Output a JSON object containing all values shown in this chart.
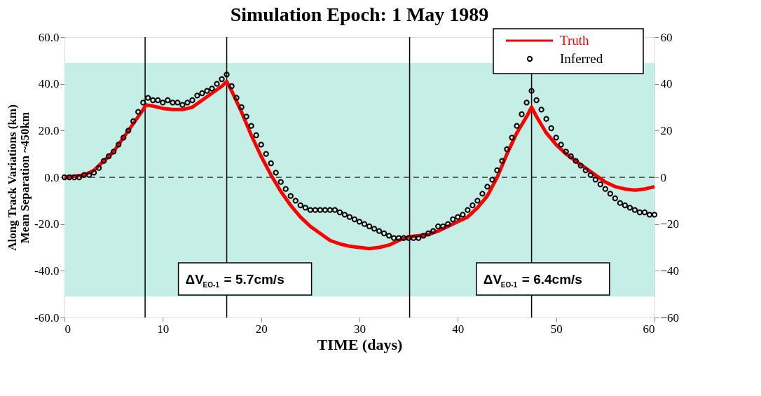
{
  "chart_data": {
    "type": "line",
    "title": "Simulation Epoch: 1 May 1989",
    "xlabel": "TIME (days)",
    "ylabel": "Along Track Variations (km)\nMean Separation ~450km",
    "xlim": [
      0,
      60
    ],
    "xticks": [
      0,
      10,
      20,
      30,
      40,
      50,
      60
    ],
    "ylim": [
      -60,
      60
    ],
    "yticks": [
      {
        "value": -60,
        "label": "-60.0"
      },
      {
        "value": -40,
        "label": "-40.0"
      },
      {
        "value": -20,
        "label": "-20.0"
      },
      {
        "value": 0,
        "label": "0.0"
      },
      {
        "value": 20,
        "label": "20.0"
      },
      {
        "value": 40,
        "label": "40.0"
      },
      {
        "value": 60,
        "label": "60.0"
      }
    ],
    "y2lim": [
      -60,
      60
    ],
    "y2ticks": [
      -60,
      -40,
      -20,
      0,
      20,
      40,
      60
    ],
    "grid": false,
    "legend": "top right",
    "series": [
      {
        "name": "Truth",
        "type": "line",
        "color": "#ff0000",
        "x": [
          0,
          2,
          3,
          4,
          5,
          6,
          7,
          8,
          8.3,
          9,
          10,
          11,
          12,
          13,
          14,
          15,
          16,
          16.5,
          17,
          18,
          19,
          20,
          21,
          22,
          23,
          24,
          25,
          26,
          27,
          28,
          29,
          30,
          31,
          32,
          33,
          34,
          35,
          36,
          37,
          38,
          39,
          40,
          41,
          42,
          43,
          44,
          45,
          46,
          47,
          47.5,
          48,
          49,
          50,
          51,
          52,
          53,
          54,
          55,
          56,
          57,
          58,
          59,
          60
        ],
        "values": [
          0,
          1,
          3,
          7,
          11,
          17,
          23,
          29,
          31,
          30.5,
          29.5,
          29,
          29,
          30,
          33,
          36,
          39,
          41,
          37,
          28,
          18,
          9,
          1,
          -6,
          -12,
          -17,
          -21,
          -24,
          -27,
          -28.5,
          -29.5,
          -30,
          -30.5,
          -30,
          -29,
          -27,
          -25.5,
          -25,
          -24.5,
          -23,
          -21,
          -19,
          -17,
          -13,
          -8,
          0,
          10,
          19,
          26,
          30,
          26,
          19,
          14,
          10,
          7,
          4,
          1,
          -2,
          -4,
          -5,
          -5.5,
          -5,
          -4
        ]
      },
      {
        "name": "Inferred",
        "type": "scatter",
        "marker": "circle",
        "color": "#000000",
        "x": [
          0,
          0.5,
          1,
          1.5,
          2,
          2.5,
          3,
          3.5,
          4,
          4.5,
          5,
          5.5,
          6,
          6.5,
          7,
          7.5,
          8,
          8.5,
          9,
          9.5,
          10,
          10.5,
          11,
          11.5,
          12,
          12.5,
          13,
          13.5,
          14,
          14.5,
          15,
          15.5,
          16,
          16.5,
          17,
          17.5,
          18,
          18.5,
          19,
          19.5,
          20,
          20.5,
          21,
          21.5,
          22,
          22.5,
          23,
          23.5,
          24,
          24.5,
          25,
          25.5,
          26,
          26.5,
          27,
          27.5,
          28,
          28.5,
          29,
          29.5,
          30,
          30.5,
          31,
          31.5,
          32,
          32.5,
          33,
          33.5,
          34,
          34.5,
          35,
          35.5,
          36,
          36.5,
          37,
          37.5,
          38,
          38.5,
          39,
          39.5,
          40,
          40.5,
          41,
          41.5,
          42,
          42.5,
          43,
          43.5,
          44,
          44.5,
          45,
          45.5,
          46,
          46.5,
          47,
          47.5,
          48,
          48.5,
          49,
          49.5,
          50,
          50.5,
          51,
          51.5,
          52,
          52.5,
          53,
          53.5,
          54,
          54.5,
          55,
          55.5,
          56,
          56.5,
          57,
          57.5,
          58,
          58.5,
          59,
          59.5,
          60
        ],
        "values": [
          0,
          0,
          0,
          0,
          1,
          1,
          2,
          4,
          7,
          9,
          11,
          14,
          17,
          20,
          24,
          28,
          32,
          34,
          33,
          33,
          32,
          33,
          32,
          32,
          31,
          32,
          33,
          35,
          36,
          37,
          38,
          40,
          42,
          44,
          39,
          34,
          30,
          26,
          22,
          18,
          14,
          10,
          6,
          2,
          -2,
          -5,
          -8,
          -10,
          -12,
          -13,
          -14,
          -14,
          -14,
          -14,
          -14,
          -14,
          -15,
          -16,
          -17,
          -18,
          -19,
          -20,
          -21,
          -22,
          -23,
          -24,
          -25,
          -26,
          -26,
          -26,
          -26,
          -26,
          -26,
          -25,
          -24,
          -23,
          -21,
          -21,
          -20,
          -18,
          -17,
          -16,
          -14,
          -12,
          -10,
          -7,
          -4,
          -1,
          3,
          7,
          12,
          17,
          22,
          27,
          32,
          37,
          33,
          29,
          25,
          21,
          17,
          14,
          11,
          9,
          7,
          5,
          3,
          1,
          -1,
          -3,
          -5,
          -7,
          -9,
          -11,
          -12,
          -13,
          -14,
          -15,
          -15,
          -16,
          -16
        ]
      }
    ],
    "ref_lines": [
      {
        "axis": "y",
        "value": 0,
        "line_style": "dashed",
        "color": "#333333"
      },
      {
        "axis": "x",
        "value": 8.2,
        "color": "#000000"
      },
      {
        "axis": "x",
        "value": 16.5,
        "color": "#000000"
      },
      {
        "axis": "x",
        "value": 35.1,
        "color": "#000000"
      },
      {
        "axis": "x",
        "value": 47.5,
        "color": "#000000"
      }
    ],
    "bands": [
      {
        "axis": "y",
        "from": -51,
        "to": 49,
        "color": "#c4eee6"
      }
    ],
    "annotations": [
      "ΔV$_{EO-1}$ = 5.7cm/s",
      "ΔV$_{EO-1}$ = 6.4cm/s"
    ]
  }
}
